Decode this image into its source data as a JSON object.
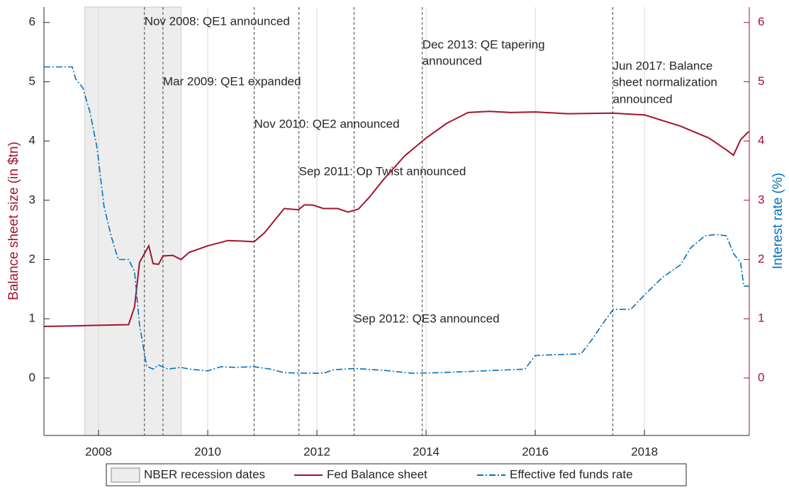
{
  "chart_data": {
    "type": "line",
    "y_label": "Balance sheet size (in $tn)",
    "y2_label": "Interest rate (%)",
    "xlim": [
      2007.0,
      2019.92
    ],
    "xticks": [
      2008,
      2010,
      2012,
      2014,
      2016,
      2018
    ],
    "ylim": [
      -0.97,
      6.26
    ],
    "yticks": [
      0,
      1,
      2,
      3,
      4,
      5,
      6
    ],
    "y2lim": [
      -0.97,
      6.26
    ],
    "y2ticks": [
      0,
      1,
      2,
      3,
      4,
      5,
      6
    ],
    "grid": true,
    "legend": "bottom",
    "recession": {
      "name": "NBER recession dates",
      "start": 2007.75,
      "end": 2009.51,
      "color": "#ededed"
    },
    "events": [
      {
        "x": 2008.84,
        "label": [
          "Nov 2008: QE1 announced"
        ]
      },
      {
        "x": 2009.18,
        "label": [
          "Mar 2009: QE1 expanded"
        ]
      },
      {
        "x": 2010.85,
        "label": [
          "Nov 2010: QE2 announced"
        ]
      },
      {
        "x": 2011.67,
        "label": [
          "Sep 2011: Op Twist announced"
        ]
      },
      {
        "x": 2012.68,
        "label": [
          "Sep 2012: QE3 announced"
        ]
      },
      {
        "x": 2013.93,
        "label": [
          "Dec 2013: QE tapering",
          "announced"
        ]
      },
      {
        "x": 2017.42,
        "label": [
          "Jun 2017: Balance",
          "sheet normalization",
          "announced"
        ]
      }
    ],
    "series": [
      {
        "name": "Fed Balance sheet",
        "color": "#a2142f",
        "x": [
          2007.0,
          2007.52,
          2008.0,
          2008.55,
          2008.66,
          2008.75,
          2008.92,
          2009.0,
          2009.1,
          2009.18,
          2009.36,
          2009.51,
          2009.66,
          2010.0,
          2010.37,
          2010.63,
          2010.85,
          2011.04,
          2011.4,
          2011.66,
          2011.77,
          2011.92,
          2012.12,
          2012.38,
          2012.57,
          2012.76,
          2012.96,
          2013.22,
          2013.61,
          2014.0,
          2014.38,
          2014.77,
          2015.16,
          2015.55,
          2016.0,
          2016.59,
          2017.41,
          2018.0,
          2018.66,
          2019.18,
          2019.5,
          2019.63,
          2019.76,
          2019.91
        ],
        "values": [
          0.87,
          0.88,
          0.89,
          0.9,
          1.2,
          1.95,
          2.23,
          1.93,
          1.92,
          2.06,
          2.07,
          2.0,
          2.12,
          2.23,
          2.32,
          2.31,
          2.3,
          2.45,
          2.86,
          2.84,
          2.92,
          2.92,
          2.86,
          2.86,
          2.8,
          2.85,
          3.05,
          3.35,
          3.75,
          4.05,
          4.3,
          4.48,
          4.5,
          4.48,
          4.49,
          4.46,
          4.47,
          4.44,
          4.25,
          4.05,
          3.85,
          3.76,
          4.02,
          4.16
        ]
      },
      {
        "name": "Effective fed funds rate",
        "color": "#0072bd",
        "axis": "y2",
        "x": [
          2007.0,
          2007.52,
          2007.58,
          2007.71,
          2007.84,
          2007.97,
          2008.1,
          2008.23,
          2008.36,
          2008.55,
          2008.66,
          2008.75,
          2008.88,
          2009.0,
          2009.1,
          2009.27,
          2009.51,
          2009.66,
          2010.0,
          2010.24,
          2010.5,
          2010.85,
          2011.15,
          2011.4,
          2011.79,
          2012.12,
          2012.31,
          2012.7,
          2013.22,
          2013.74,
          2014.25,
          2015.03,
          2015.81,
          2016.0,
          2016.59,
          2016.84,
          2017.04,
          2017.23,
          2017.43,
          2017.75,
          2018.01,
          2018.33,
          2018.66,
          2018.85,
          2019.11,
          2019.31,
          2019.5,
          2019.63,
          2019.76,
          2019.82,
          2019.91
        ],
        "values": [
          5.25,
          5.25,
          5.05,
          4.9,
          4.5,
          3.9,
          2.9,
          2.4,
          2.0,
          2.0,
          1.8,
          0.9,
          0.2,
          0.15,
          0.22,
          0.15,
          0.18,
          0.15,
          0.12,
          0.19,
          0.18,
          0.19,
          0.15,
          0.09,
          0.08,
          0.08,
          0.14,
          0.16,
          0.13,
          0.08,
          0.09,
          0.12,
          0.15,
          0.38,
          0.4,
          0.41,
          0.65,
          0.91,
          1.16,
          1.16,
          1.41,
          1.7,
          1.91,
          2.2,
          2.4,
          2.42,
          2.4,
          2.1,
          1.95,
          1.55,
          1.55
        ]
      }
    ]
  }
}
